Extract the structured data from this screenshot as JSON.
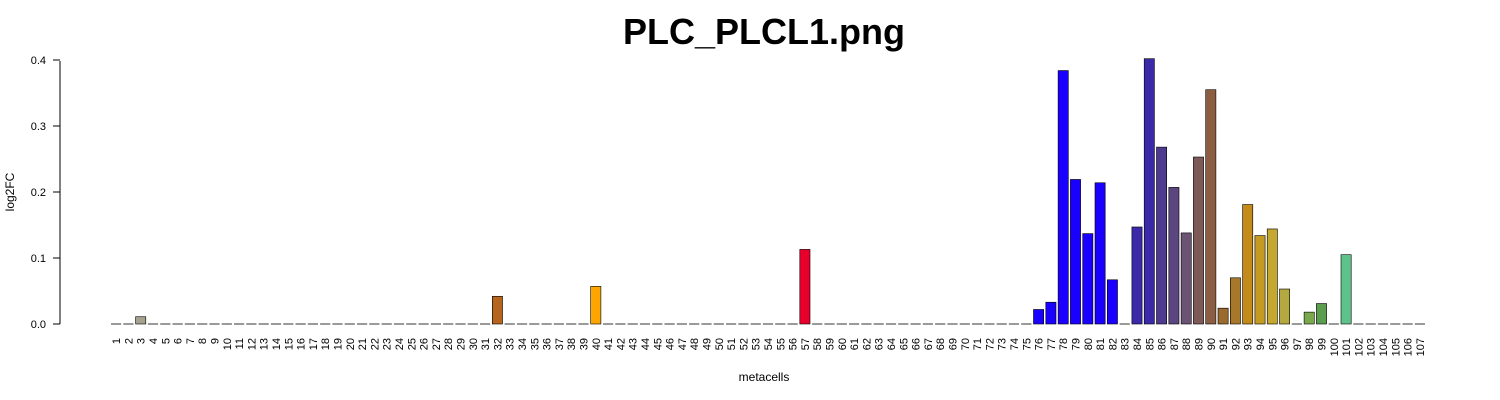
{
  "chart_data": {
    "type": "bar",
    "title": "PLC_PLCL1.png",
    "xlabel": "metacells",
    "ylabel": "log2FC",
    "ylim": [
      0,
      0.4
    ],
    "yticks": [
      "0.0",
      "0.1",
      "0.2",
      "0.3",
      "0.4"
    ],
    "grid": false,
    "categories": [
      "1",
      "2",
      "3",
      "4",
      "5",
      "6",
      "7",
      "8",
      "9",
      "10",
      "11",
      "12",
      "13",
      "14",
      "15",
      "16",
      "17",
      "18",
      "19",
      "20",
      "21",
      "22",
      "23",
      "24",
      "25",
      "26",
      "27",
      "28",
      "29",
      "30",
      "31",
      "32",
      "33",
      "34",
      "35",
      "36",
      "37",
      "38",
      "39",
      "40",
      "41",
      "42",
      "43",
      "44",
      "45",
      "46",
      "47",
      "48",
      "49",
      "50",
      "51",
      "52",
      "53",
      "54",
      "55",
      "56",
      "57",
      "58",
      "59",
      "60",
      "61",
      "62",
      "63",
      "64",
      "65",
      "66",
      "67",
      "68",
      "69",
      "70",
      "71",
      "72",
      "73",
      "74",
      "75",
      "76",
      "77",
      "78",
      "79",
      "80",
      "81",
      "82",
      "83",
      "84",
      "85",
      "86",
      "87",
      "88",
      "89",
      "90",
      "91",
      "92",
      "93",
      "94",
      "95",
      "96",
      "97",
      "98",
      "99",
      "100",
      "101",
      "102",
      "103",
      "104",
      "105",
      "106",
      "107"
    ],
    "values": [
      0,
      0,
      0.011,
      0,
      0,
      0,
      0,
      0,
      0,
      0,
      0,
      0,
      0,
      0,
      0,
      0,
      0,
      0,
      0,
      0,
      0,
      0,
      0,
      0,
      0,
      0,
      0,
      0,
      0,
      0,
      0,
      0.042,
      0,
      0,
      0,
      0,
      0,
      0,
      0,
      0.057,
      0,
      0,
      0,
      0,
      0,
      0,
      0,
      0,
      0,
      0,
      0,
      0,
      0,
      0,
      0,
      0,
      0.113,
      0,
      0,
      0,
      0,
      0,
      0,
      0,
      0,
      0,
      0,
      0,
      0,
      0,
      0,
      0,
      0,
      0,
      0,
      0.022,
      0.033,
      0.384,
      0.219,
      0.137,
      0.214,
      0.067,
      0,
      0.147,
      0.402,
      0.268,
      0.207,
      0.138,
      0.253,
      0.355,
      0.024,
      0.07,
      0.181,
      0.134,
      0.144,
      0.053,
      0,
      0.018,
      0.031,
      0,
      0.105,
      0,
      0,
      0,
      0,
      0,
      0
    ],
    "colors": [
      "#bebebe",
      "#bebebe",
      "#a7a18f",
      "#bebebe",
      "#bebebe",
      "#bebebe",
      "#bebebe",
      "#bebebe",
      "#bebebe",
      "#bebebe",
      "#bebebe",
      "#bebebe",
      "#bebebe",
      "#bebebe",
      "#bebebe",
      "#bebebe",
      "#bebebe",
      "#bebebe",
      "#bebebe",
      "#bebebe",
      "#bebebe",
      "#bebebe",
      "#bebebe",
      "#bebebe",
      "#bebebe",
      "#bebebe",
      "#bebebe",
      "#bebebe",
      "#bebebe",
      "#bebebe",
      "#bebebe",
      "#b5651d",
      "#bebebe",
      "#bebebe",
      "#bebebe",
      "#bebebe",
      "#bebebe",
      "#bebebe",
      "#bebebe",
      "#ffa500",
      "#bebebe",
      "#bebebe",
      "#bebebe",
      "#bebebe",
      "#bebebe",
      "#bebebe",
      "#bebebe",
      "#bebebe",
      "#bebebe",
      "#bebebe",
      "#bebebe",
      "#bebebe",
      "#bebebe",
      "#bebebe",
      "#bebebe",
      "#bebebe",
      "#e8002d",
      "#bebebe",
      "#bebebe",
      "#bebebe",
      "#bebebe",
      "#bebebe",
      "#bebebe",
      "#bebebe",
      "#bebebe",
      "#bebebe",
      "#bebebe",
      "#bebebe",
      "#bebebe",
      "#bebebe",
      "#bebebe",
      "#bebebe",
      "#bebebe",
      "#bebebe",
      "#bebebe",
      "#1a00ff",
      "#1a00ff",
      "#1a00ff",
      "#1a00ff",
      "#1a00ff",
      "#1a00ff",
      "#1a00ff",
      "#bebebe",
      "#3a2aa8",
      "#3a2aa8",
      "#4e3a8e",
      "#5c4680",
      "#6b5373",
      "#7d5a58",
      "#8b5e44",
      "#9b6a2e",
      "#a8782a",
      "#c48a1a",
      "#c49a20",
      "#c4a830",
      "#b4a840",
      "#bebebe",
      "#7aa84c",
      "#5c9e50",
      "#bebebe",
      "#5fc28a",
      "#bebebe",
      "#bebebe",
      "#bebebe",
      "#bebebe",
      "#bebebe",
      "#bebebe"
    ]
  }
}
